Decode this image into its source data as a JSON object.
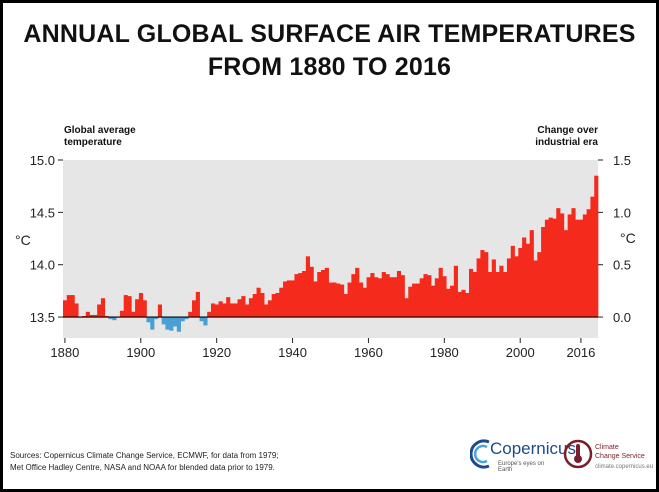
{
  "title": {
    "line1": "ANNUAL GLOBAL SURFACE AIR TEMPERATURES",
    "line2": "FROM 1880 TO 2016"
  },
  "left_axis": {
    "caption_line1": "Global average",
    "caption_line2": "temperature",
    "unit": "°C"
  },
  "right_axis": {
    "caption_line1": "Change over",
    "caption_line2": "industrial era",
    "unit": "°C"
  },
  "sources": {
    "line1": "Sources: Copernicus Climate Change Service, ECMWF, for data from 1979;",
    "line2": "Met Office Hadley Centre, NASA and NOAA for blended data prior to 1979."
  },
  "logos": {
    "copernicus": "Copernicus",
    "copernicus_tagline": "Europe's eyes on Earth",
    "c3s_line1": "Climate",
    "c3s_line2": "Change Service",
    "c3s_url": "climate.copernicus.eu"
  },
  "colors": {
    "warm": "#f42a1d",
    "cool": "#4a9fd4",
    "plot_bg": "#e6e6e6",
    "baseline": "#000000"
  },
  "chart_data": {
    "type": "bar",
    "baseline": 13.5,
    "ylim_left": [
      13.3,
      15.0
    ],
    "ylim_right": [
      -0.2,
      1.5
    ],
    "left_ticks": [
      "13.5",
      "14.0",
      "14.5",
      "15.0"
    ],
    "right_ticks": [
      "0.0",
      "0.5",
      "1.0",
      "1.5"
    ],
    "x_ticks": [
      "1880",
      "1900",
      "1920",
      "1940",
      "1960",
      "1980",
      "2000",
      "2016"
    ],
    "grid": false,
    "series": [
      {
        "start_year": 1880,
        "values": [
          13.66,
          13.71,
          13.71,
          13.63,
          13.5,
          13.51,
          13.55,
          13.52,
          13.52,
          13.62,
          13.68,
          13.51,
          13.48,
          13.47,
          13.5,
          13.56,
          13.71,
          13.7,
          13.55,
          13.67,
          13.73,
          13.66,
          13.45,
          13.38,
          13.48,
          13.62,
          13.43,
          13.38,
          13.37,
          13.41,
          13.36,
          13.46,
          13.48,
          13.55,
          13.66,
          13.74,
          13.46,
          13.42,
          13.55,
          13.63,
          13.62,
          13.65,
          13.63,
          13.69,
          13.63,
          13.63,
          13.67,
          13.7,
          13.62,
          13.68,
          13.72,
          13.78,
          13.73,
          13.62,
          13.66,
          13.72,
          13.73,
          13.78,
          13.84,
          13.85,
          13.85,
          13.91,
          13.92,
          13.94,
          14.08,
          13.98,
          13.84,
          13.93,
          13.95,
          13.97,
          13.83,
          13.83,
          13.82,
          13.81,
          13.72,
          13.83,
          13.91,
          13.97,
          13.83,
          13.78,
          13.88,
          13.92,
          13.88,
          13.87,
          13.93,
          13.91,
          13.88,
          13.88,
          13.94,
          13.9,
          13.68,
          13.79,
          13.82,
          13.82,
          13.87,
          13.91,
          13.9,
          13.8,
          13.87,
          13.97,
          13.89,
          13.77,
          13.8,
          13.99,
          13.74,
          13.76,
          13.73,
          13.96,
          13.93,
          14.06,
          14.14,
          14.12,
          13.93,
          14.05,
          13.93,
          13.99,
          13.93,
          14.06,
          14.18,
          14.08,
          14.16,
          14.26,
          14.2,
          14.33,
          14.04,
          14.12,
          14.36,
          14.43,
          14.45,
          14.44,
          14.54,
          14.49,
          14.33,
          14.48,
          14.54,
          14.43,
          14.43,
          14.48,
          14.53,
          14.65,
          14.85
        ]
      }
    ]
  }
}
